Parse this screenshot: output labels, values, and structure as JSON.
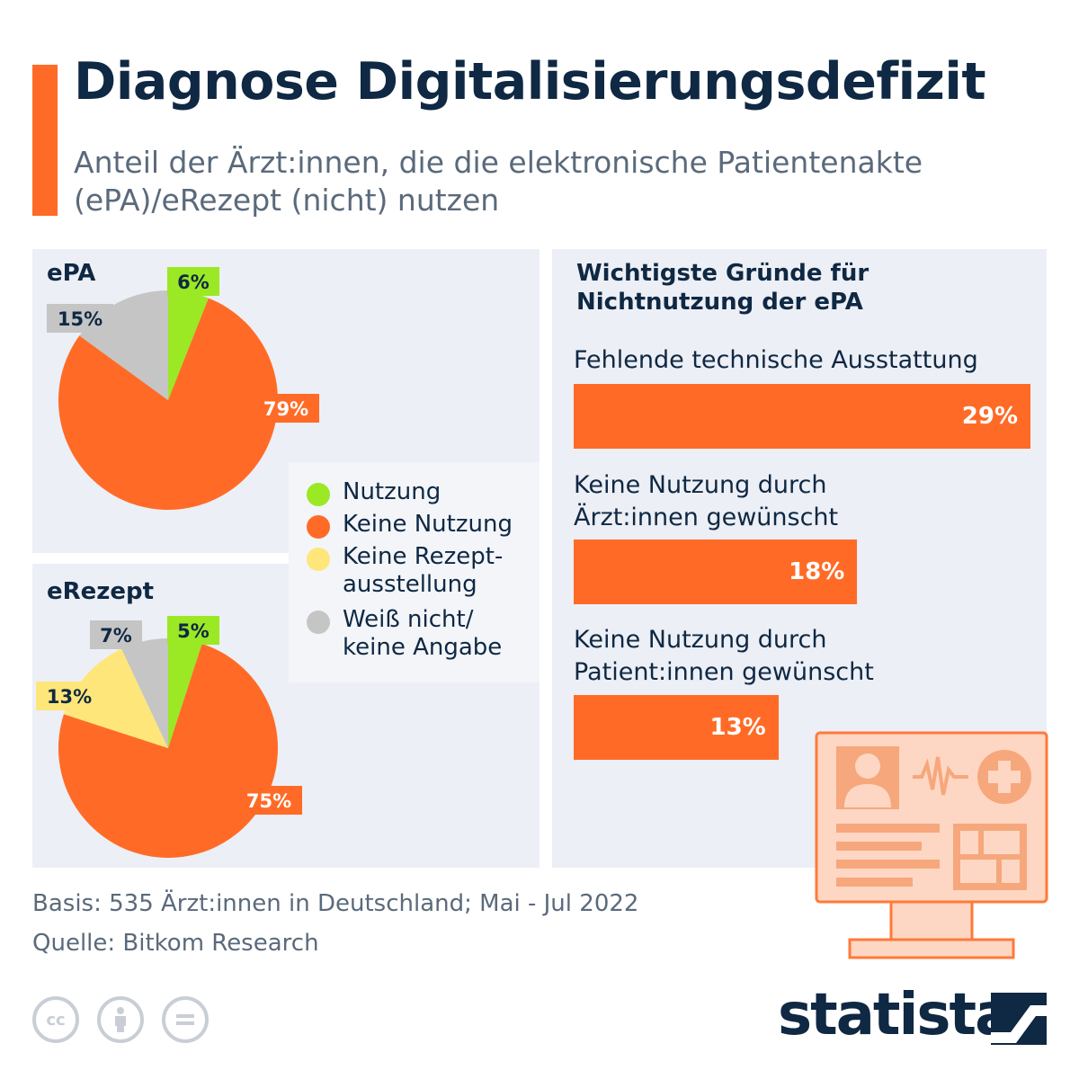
{
  "header": {
    "title": "Diagnose Digitalisierungsdefizit",
    "subtitle": "Anteil der Ärzt:innen, die die elektronische Patientenakte (ePA)/eRezept (nicht) nutzen"
  },
  "colors": {
    "accent": "#ff6b26",
    "nutzung": "#9be824",
    "keine_nutzung": "#ff6b26",
    "keine_rezept": "#ffe67a",
    "weiss_nicht": "#c5c5c5",
    "navy": "#0f2843",
    "panel": "#eceff5"
  },
  "legend": {
    "items": [
      {
        "label": "Nutzung",
        "color": "#9be824"
      },
      {
        "label": "Keine Nutzung",
        "color": "#ff6b26"
      },
      {
        "label": "Keine Rezept-\nausstellung",
        "color": "#ffe67a"
      },
      {
        "label": "Weiß nicht/\nkeine Angabe",
        "color": "#c5c5c5"
      }
    ]
  },
  "chart_data": [
    {
      "type": "pie",
      "title": "ePA",
      "slices": [
        {
          "label": "Nutzung",
          "value": 6,
          "display": "6%"
        },
        {
          "label": "Keine Nutzung",
          "value": 79,
          "display": "79%"
        },
        {
          "label": "Weiß nicht/ keine Angabe",
          "value": 15,
          "display": "15%"
        }
      ]
    },
    {
      "type": "pie",
      "title": "eRezept",
      "slices": [
        {
          "label": "Nutzung",
          "value": 5,
          "display": "5%"
        },
        {
          "label": "Keine Nutzung",
          "value": 75,
          "display": "75%"
        },
        {
          "label": "Keine Rezept-ausstellung",
          "value": 13,
          "display": "13%"
        },
        {
          "label": "Weiß nicht/ keine Angabe",
          "value": 7,
          "display": "7%"
        }
      ]
    },
    {
      "type": "bar",
      "title": "Wichtigste Gründe für Nichtnutzung der ePA",
      "categories": [
        "Fehlende technische Ausstattung",
        "Keine Nutzung durch Ärzt:innen gewünscht",
        "Keine Nutzung durch Patient:innen gewünscht"
      ],
      "values": [
        29,
        18,
        13
      ],
      "display": [
        "29%",
        "18%",
        "13%"
      ]
    }
  ],
  "bars": {
    "heading": "Wichtigste Gründe für Nichtnutzung der ePA",
    "labels": [
      "Fehlende technische Ausstattung",
      "Keine Nutzung durch\nÄrzt:innen gewünscht",
      "Keine Nutzung durch\nPatient:innen gewünscht"
    ],
    "values": [
      "29%",
      "18%",
      "13%"
    ]
  },
  "footer": {
    "basis": "Basis: 535 Ärzt:innen in Deutschland; Mai - Jul 2022",
    "source": "Quelle: Bitkom Research",
    "cc_icons": [
      "creative-commons-icon",
      "attribution-icon",
      "no-derivatives-icon"
    ],
    "logo": "statista"
  },
  "illustration": {
    "icon": "medical-monitor-icon"
  }
}
